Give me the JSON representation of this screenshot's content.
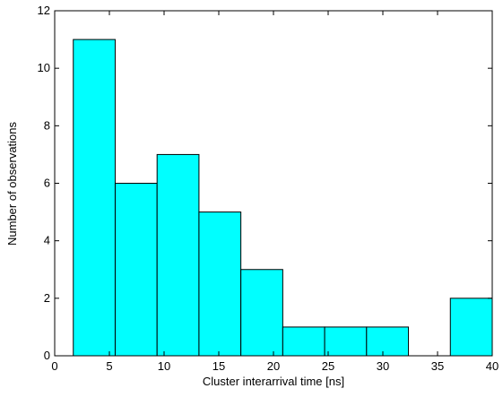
{
  "chart_data": {
    "type": "histogram",
    "xlabel": "Cluster interarrival time [ns]",
    "ylabel": "Number of observations",
    "bins": [
      1.7,
      5.53,
      9.36,
      13.19,
      17.02,
      20.85,
      24.68,
      28.51,
      32.34,
      36.17,
      40
    ],
    "values": [
      11,
      6,
      7,
      5,
      3,
      1,
      1,
      1,
      0,
      2
    ],
    "color": "#00ffff",
    "edgecolor": "#000000",
    "xlim": [
      0,
      40
    ],
    "xticks": [
      0,
      5,
      10,
      15,
      20,
      25,
      30,
      35,
      40
    ],
    "ylim": [
      0,
      12
    ],
    "yticks": [
      0,
      2,
      4,
      6,
      8,
      10,
      12
    ],
    "grid": false
  }
}
